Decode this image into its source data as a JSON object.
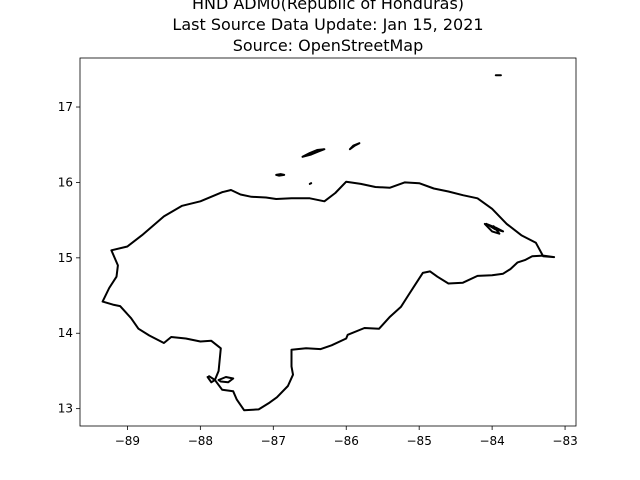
{
  "title": {
    "line1": "HND ADM0(Republic of Honduras)",
    "line2": "Last Source Data Update: Jan 15, 2021",
    "line3": "Source: OpenStreetMap"
  },
  "map": {
    "xlim": [
      -89.65,
      -82.85
    ],
    "ylim": [
      12.77,
      17.65
    ],
    "xticks": [
      {
        "value": -89,
        "label": "−89"
      },
      {
        "value": -88,
        "label": "−88"
      },
      {
        "value": -87,
        "label": "−87"
      },
      {
        "value": -86,
        "label": "−86"
      },
      {
        "value": -85,
        "label": "−85"
      },
      {
        "value": -84,
        "label": "−84"
      },
      {
        "value": -83,
        "label": "−83"
      }
    ],
    "yticks": [
      {
        "value": 13,
        "label": "13"
      },
      {
        "value": 14,
        "label": "14"
      },
      {
        "value": 15,
        "label": "15"
      },
      {
        "value": 16,
        "label": "16"
      },
      {
        "value": 17,
        "label": "17"
      }
    ],
    "outline_color": "#000000",
    "geometry": {
      "mainland": [
        [
          -87.7,
          15.87
        ],
        [
          -87.58,
          15.9
        ],
        [
          -87.45,
          15.84
        ],
        [
          -87.3,
          15.81
        ],
        [
          -87.1,
          15.8
        ],
        [
          -86.96,
          15.78
        ],
        [
          -86.75,
          15.79
        ],
        [
          -86.5,
          15.79
        ],
        [
          -86.3,
          15.75
        ],
        [
          -86.15,
          15.86
        ],
        [
          -86.0,
          16.01
        ],
        [
          -85.8,
          15.98
        ],
        [
          -85.6,
          15.94
        ],
        [
          -85.4,
          15.93
        ],
        [
          -85.2,
          16.0
        ],
        [
          -85.0,
          15.99
        ],
        [
          -84.8,
          15.92
        ],
        [
          -84.6,
          15.88
        ],
        [
          -84.4,
          15.83
        ],
        [
          -84.2,
          15.79
        ],
        [
          -84.0,
          15.65
        ],
        [
          -83.8,
          15.45
        ],
        [
          -83.6,
          15.3
        ],
        [
          -83.4,
          15.2
        ],
        [
          -83.3,
          15.02
        ],
        [
          -83.15,
          15.01
        ],
        [
          -83.3,
          15.03
        ],
        [
          -83.45,
          15.02
        ],
        [
          -83.55,
          14.97
        ],
        [
          -83.65,
          14.94
        ],
        [
          -83.75,
          14.85
        ],
        [
          -83.85,
          14.79
        ],
        [
          -84.0,
          14.77
        ],
        [
          -84.2,
          14.76
        ],
        [
          -84.4,
          14.67
        ],
        [
          -84.6,
          14.66
        ],
        [
          -84.75,
          14.75
        ],
        [
          -84.85,
          14.82
        ],
        [
          -84.95,
          14.8
        ],
        [
          -85.05,
          14.65
        ],
        [
          -85.15,
          14.5
        ],
        [
          -85.25,
          14.35
        ],
        [
          -85.4,
          14.22
        ],
        [
          -85.55,
          14.06
        ],
        [
          -85.75,
          14.07
        ],
        [
          -85.98,
          13.98
        ],
        [
          -86.0,
          13.93
        ],
        [
          -86.2,
          13.84
        ],
        [
          -86.35,
          13.79
        ],
        [
          -86.55,
          13.8
        ],
        [
          -86.75,
          13.78
        ],
        [
          -86.75,
          13.56
        ],
        [
          -86.73,
          13.45
        ],
        [
          -86.8,
          13.3
        ],
        [
          -86.95,
          13.15
        ],
        [
          -87.05,
          13.08
        ],
        [
          -87.2,
          12.99
        ],
        [
          -87.4,
          12.98
        ],
        [
          -87.5,
          13.12
        ],
        [
          -87.55,
          13.23
        ],
        [
          -87.7,
          13.25
        ],
        [
          -87.8,
          13.38
        ],
        [
          -87.75,
          13.5
        ],
        [
          -87.72,
          13.8
        ],
        [
          -87.85,
          13.9
        ],
        [
          -88.0,
          13.89
        ],
        [
          -88.2,
          13.93
        ],
        [
          -88.4,
          13.95
        ],
        [
          -88.5,
          13.87
        ],
        [
          -88.7,
          13.97
        ],
        [
          -88.85,
          14.06
        ],
        [
          -88.95,
          14.2
        ],
        [
          -89.1,
          14.36
        ],
        [
          -89.2,
          14.38
        ],
        [
          -89.34,
          14.42
        ],
        [
          -89.25,
          14.6
        ],
        [
          -89.15,
          14.75
        ],
        [
          -89.13,
          14.9
        ],
        [
          -89.22,
          15.1
        ],
        [
          -89.0,
          15.15
        ],
        [
          -88.8,
          15.3
        ],
        [
          -88.5,
          15.55
        ],
        [
          -88.25,
          15.69
        ],
        [
          -88.0,
          15.75
        ],
        [
          -87.7,
          15.87
        ]
      ],
      "islands": [
        [
          [
            -86.6,
            16.34
          ],
          [
            -86.5,
            16.39
          ],
          [
            -86.4,
            16.43
          ],
          [
            -86.3,
            16.44
          ],
          [
            -86.38,
            16.41
          ],
          [
            -86.48,
            16.37
          ],
          [
            -86.6,
            16.34
          ]
        ],
        [
          [
            -85.95,
            16.44
          ],
          [
            -85.88,
            16.49
          ],
          [
            -85.82,
            16.52
          ],
          [
            -85.9,
            16.49
          ],
          [
            -85.95,
            16.44
          ]
        ],
        [
          [
            -86.96,
            16.1
          ],
          [
            -86.9,
            16.11
          ],
          [
            -86.85,
            16.1
          ],
          [
            -86.92,
            16.09
          ],
          [
            -86.96,
            16.1
          ]
        ],
        [
          [
            -86.5,
            15.98
          ],
          [
            -86.48,
            15.99
          ]
        ],
        [
          [
            -83.95,
            17.42
          ],
          [
            -83.88,
            17.42
          ]
        ],
        [
          [
            -84.08,
            15.45
          ],
          [
            -83.95,
            15.4
          ],
          [
            -83.85,
            15.35
          ],
          [
            -83.96,
            15.38
          ],
          [
            -84.08,
            15.45
          ]
        ],
        [
          [
            -84.1,
            15.45
          ],
          [
            -84.0,
            15.35
          ],
          [
            -83.9,
            15.32
          ],
          [
            -83.98,
            15.42
          ]
        ],
        [
          [
            -87.75,
            13.38
          ],
          [
            -87.65,
            13.42
          ],
          [
            -87.55,
            13.4
          ],
          [
            -87.62,
            13.35
          ],
          [
            -87.72,
            13.36
          ],
          [
            -87.75,
            13.38
          ]
        ],
        [
          [
            -87.9,
            13.42
          ],
          [
            -87.85,
            13.35
          ],
          [
            -87.8,
            13.38
          ],
          [
            -87.88,
            13.43
          ]
        ]
      ]
    }
  }
}
